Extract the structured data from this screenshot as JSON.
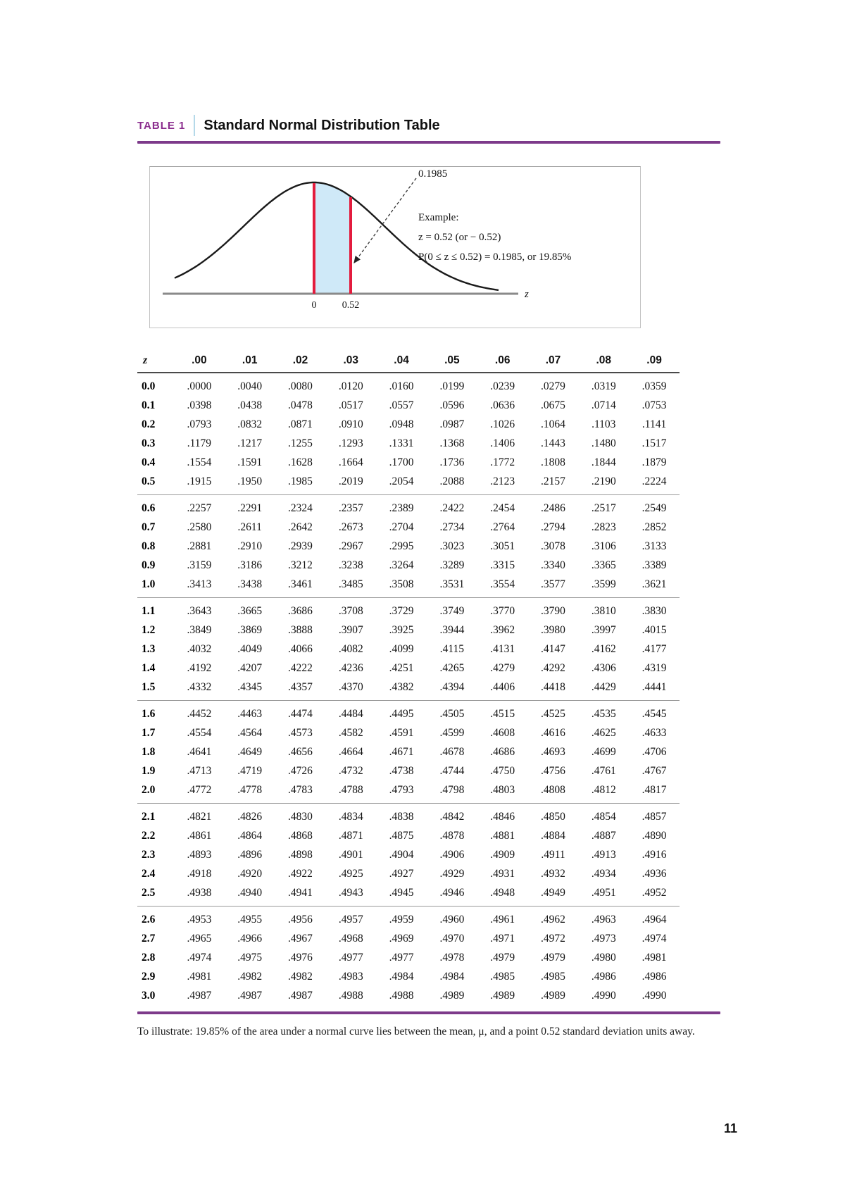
{
  "header": {
    "label": "TABLE 1",
    "title": "Standard Normal Distribution Table"
  },
  "diagram": {
    "area_label": "0.1985",
    "example_title": "Example:",
    "example_line1": "z = 0.52 (or − 0.52)",
    "example_line2": "P(0 ≤ z ≤ 0.52) = 0.1985, or 19.85%",
    "axis_label": "z",
    "tick_zero": "0",
    "tick_z": "0.52"
  },
  "table": {
    "columns": [
      "z",
      ".00",
      ".01",
      ".02",
      ".03",
      ".04",
      ".05",
      ".06",
      ".07",
      ".08",
      ".09"
    ],
    "groups": [
      [
        {
          "z": "0.0",
          "v": [
            ".0000",
            ".0040",
            ".0080",
            ".0120",
            ".0160",
            ".0199",
            ".0239",
            ".0279",
            ".0319",
            ".0359"
          ]
        },
        {
          "z": "0.1",
          "v": [
            ".0398",
            ".0438",
            ".0478",
            ".0517",
            ".0557",
            ".0596",
            ".0636",
            ".0675",
            ".0714",
            ".0753"
          ]
        },
        {
          "z": "0.2",
          "v": [
            ".0793",
            ".0832",
            ".0871",
            ".0910",
            ".0948",
            ".0987",
            ".1026",
            ".1064",
            ".1103",
            ".1141"
          ]
        },
        {
          "z": "0.3",
          "v": [
            ".1179",
            ".1217",
            ".1255",
            ".1293",
            ".1331",
            ".1368",
            ".1406",
            ".1443",
            ".1480",
            ".1517"
          ]
        },
        {
          "z": "0.4",
          "v": [
            ".1554",
            ".1591",
            ".1628",
            ".1664",
            ".1700",
            ".1736",
            ".1772",
            ".1808",
            ".1844",
            ".1879"
          ]
        },
        {
          "z": "0.5",
          "v": [
            ".1915",
            ".1950",
            ".1985",
            ".2019",
            ".2054",
            ".2088",
            ".2123",
            ".2157",
            ".2190",
            ".2224"
          ]
        }
      ],
      [
        {
          "z": "0.6",
          "v": [
            ".2257",
            ".2291",
            ".2324",
            ".2357",
            ".2389",
            ".2422",
            ".2454",
            ".2486",
            ".2517",
            ".2549"
          ]
        },
        {
          "z": "0.7",
          "v": [
            ".2580",
            ".2611",
            ".2642",
            ".2673",
            ".2704",
            ".2734",
            ".2764",
            ".2794",
            ".2823",
            ".2852"
          ]
        },
        {
          "z": "0.8",
          "v": [
            ".2881",
            ".2910",
            ".2939",
            ".2967",
            ".2995",
            ".3023",
            ".3051",
            ".3078",
            ".3106",
            ".3133"
          ]
        },
        {
          "z": "0.9",
          "v": [
            ".3159",
            ".3186",
            ".3212",
            ".3238",
            ".3264",
            ".3289",
            ".3315",
            ".3340",
            ".3365",
            ".3389"
          ]
        },
        {
          "z": "1.0",
          "v": [
            ".3413",
            ".3438",
            ".3461",
            ".3485",
            ".3508",
            ".3531",
            ".3554",
            ".3577",
            ".3599",
            ".3621"
          ]
        }
      ],
      [
        {
          "z": "1.1",
          "v": [
            ".3643",
            ".3665",
            ".3686",
            ".3708",
            ".3729",
            ".3749",
            ".3770",
            ".3790",
            ".3810",
            ".3830"
          ]
        },
        {
          "z": "1.2",
          "v": [
            ".3849",
            ".3869",
            ".3888",
            ".3907",
            ".3925",
            ".3944",
            ".3962",
            ".3980",
            ".3997",
            ".4015"
          ]
        },
        {
          "z": "1.3",
          "v": [
            ".4032",
            ".4049",
            ".4066",
            ".4082",
            ".4099",
            ".4115",
            ".4131",
            ".4147",
            ".4162",
            ".4177"
          ]
        },
        {
          "z": "1.4",
          "v": [
            ".4192",
            ".4207",
            ".4222",
            ".4236",
            ".4251",
            ".4265",
            ".4279",
            ".4292",
            ".4306",
            ".4319"
          ]
        },
        {
          "z": "1.5",
          "v": [
            ".4332",
            ".4345",
            ".4357",
            ".4370",
            ".4382",
            ".4394",
            ".4406",
            ".4418",
            ".4429",
            ".4441"
          ]
        }
      ],
      [
        {
          "z": "1.6",
          "v": [
            ".4452",
            ".4463",
            ".4474",
            ".4484",
            ".4495",
            ".4505",
            ".4515",
            ".4525",
            ".4535",
            ".4545"
          ]
        },
        {
          "z": "1.7",
          "v": [
            ".4554",
            ".4564",
            ".4573",
            ".4582",
            ".4591",
            ".4599",
            ".4608",
            ".4616",
            ".4625",
            ".4633"
          ]
        },
        {
          "z": "1.8",
          "v": [
            ".4641",
            ".4649",
            ".4656",
            ".4664",
            ".4671",
            ".4678",
            ".4686",
            ".4693",
            ".4699",
            ".4706"
          ]
        },
        {
          "z": "1.9",
          "v": [
            ".4713",
            ".4719",
            ".4726",
            ".4732",
            ".4738",
            ".4744",
            ".4750",
            ".4756",
            ".4761",
            ".4767"
          ]
        },
        {
          "z": "2.0",
          "v": [
            ".4772",
            ".4778",
            ".4783",
            ".4788",
            ".4793",
            ".4798",
            ".4803",
            ".4808",
            ".4812",
            ".4817"
          ]
        }
      ],
      [
        {
          "z": "2.1",
          "v": [
            ".4821",
            ".4826",
            ".4830",
            ".4834",
            ".4838",
            ".4842",
            ".4846",
            ".4850",
            ".4854",
            ".4857"
          ]
        },
        {
          "z": "2.2",
          "v": [
            ".4861",
            ".4864",
            ".4868",
            ".4871",
            ".4875",
            ".4878",
            ".4881",
            ".4884",
            ".4887",
            ".4890"
          ]
        },
        {
          "z": "2.3",
          "v": [
            ".4893",
            ".4896",
            ".4898",
            ".4901",
            ".4904",
            ".4906",
            ".4909",
            ".4911",
            ".4913",
            ".4916"
          ]
        },
        {
          "z": "2.4",
          "v": [
            ".4918",
            ".4920",
            ".4922",
            ".4925",
            ".4927",
            ".4929",
            ".4931",
            ".4932",
            ".4934",
            ".4936"
          ]
        },
        {
          "z": "2.5",
          "v": [
            ".4938",
            ".4940",
            ".4941",
            ".4943",
            ".4945",
            ".4946",
            ".4948",
            ".4949",
            ".4951",
            ".4952"
          ]
        }
      ],
      [
        {
          "z": "2.6",
          "v": [
            ".4953",
            ".4955",
            ".4956",
            ".4957",
            ".4959",
            ".4960",
            ".4961",
            ".4962",
            ".4963",
            ".4964"
          ]
        },
        {
          "z": "2.7",
          "v": [
            ".4965",
            ".4966",
            ".4967",
            ".4968",
            ".4969",
            ".4970",
            ".4971",
            ".4972",
            ".4973",
            ".4974"
          ]
        },
        {
          "z": "2.8",
          "v": [
            ".4974",
            ".4975",
            ".4976",
            ".4977",
            ".4977",
            ".4978",
            ".4979",
            ".4979",
            ".4980",
            ".4981"
          ]
        },
        {
          "z": "2.9",
          "v": [
            ".4981",
            ".4982",
            ".4982",
            ".4983",
            ".4984",
            ".4984",
            ".4985",
            ".4985",
            ".4986",
            ".4986"
          ]
        },
        {
          "z": "3.0",
          "v": [
            ".4987",
            ".4987",
            ".4987",
            ".4988",
            ".4988",
            ".4989",
            ".4989",
            ".4989",
            ".4990",
            ".4990"
          ]
        }
      ]
    ]
  },
  "footnote": "To illustrate: 19.85% of the area under a normal curve lies between the mean, μ, and a point 0.52 standard deviation units away.",
  "page": {
    "number": "11"
  },
  "colors": {
    "accent_purple": "#8b2e8e",
    "rule_purple": "#7d3a8a",
    "divider_blue": "#b5d9e9",
    "shade_fill": "#cfe9f8",
    "red_line": "#e31b3d",
    "axis_gray": "#8a8a8a"
  }
}
